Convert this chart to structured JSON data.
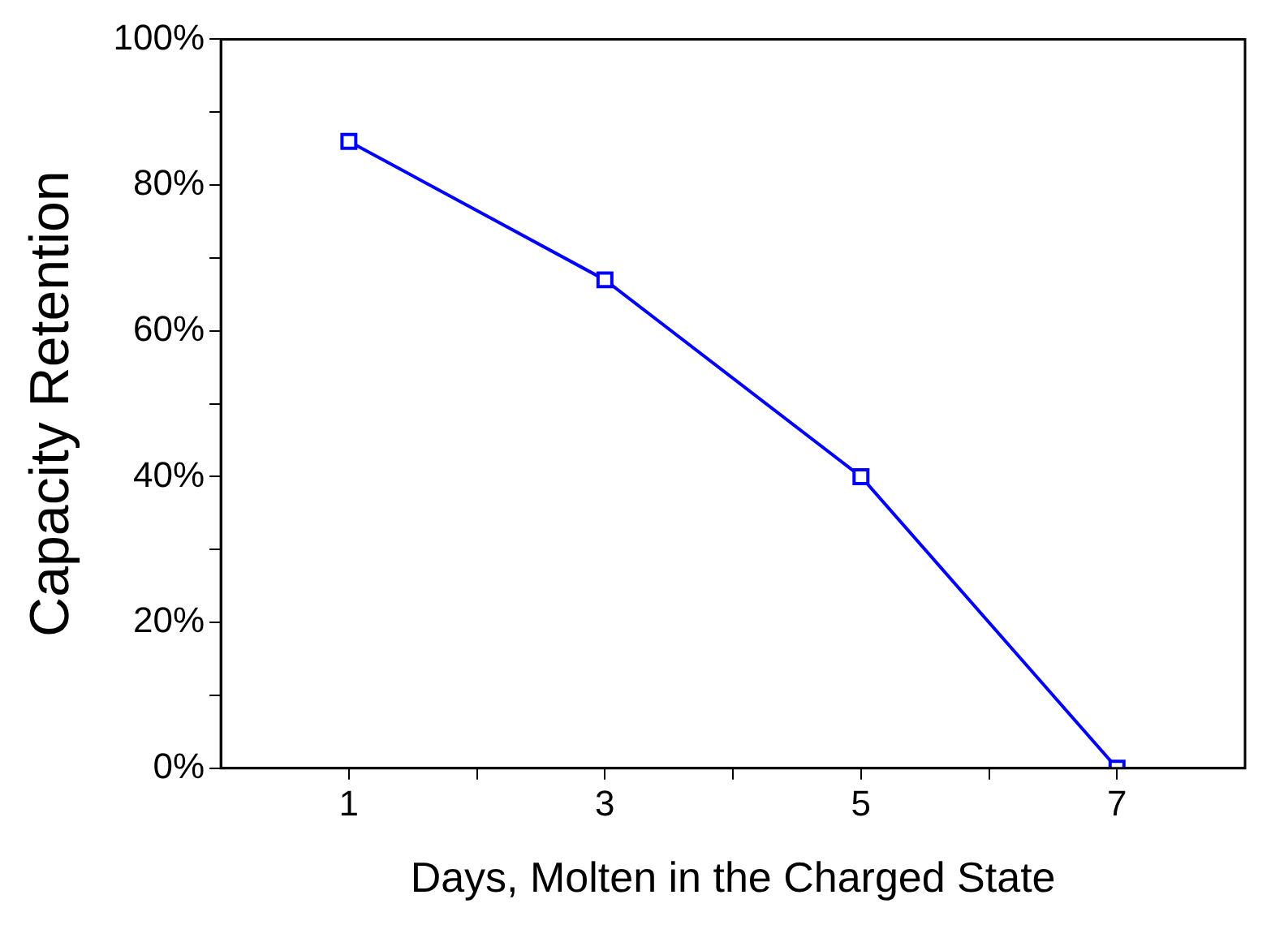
{
  "chart_data": {
    "type": "line",
    "xlabel": "Days, Molten in the Charged State",
    "ylabel": "Capacity Retention",
    "x": [
      1,
      3,
      5,
      7
    ],
    "series": [
      {
        "color": "#0000ff",
        "values": [
          86,
          67,
          40,
          0
        ]
      }
    ],
    "xlim": [
      0,
      8
    ],
    "xticks": [
      1,
      {
        "value": 2,
        "label": null
      },
      3,
      {
        "value": 4,
        "label": null
      },
      5,
      {
        "value": 6,
        "label": null
      },
      7
    ],
    "ylim": [
      0,
      100
    ],
    "yticks": [
      {
        "value": 0,
        "label": "0%"
      },
      {
        "value": 10,
        "label": null
      },
      {
        "value": 20,
        "label": "20%"
      },
      {
        "value": 30,
        "label": null
      },
      {
        "value": 40,
        "label": "40%"
      },
      {
        "value": 50,
        "label": null
      },
      {
        "value": 60,
        "label": "60%"
      },
      {
        "value": 70,
        "label": null
      },
      {
        "value": 80,
        "label": "80%"
      },
      {
        "value": 90,
        "label": null
      },
      {
        "value": 100,
        "label": "100%"
      }
    ],
    "grid": false,
    "legend": false,
    "marker": "square",
    "line_style": "solid"
  }
}
